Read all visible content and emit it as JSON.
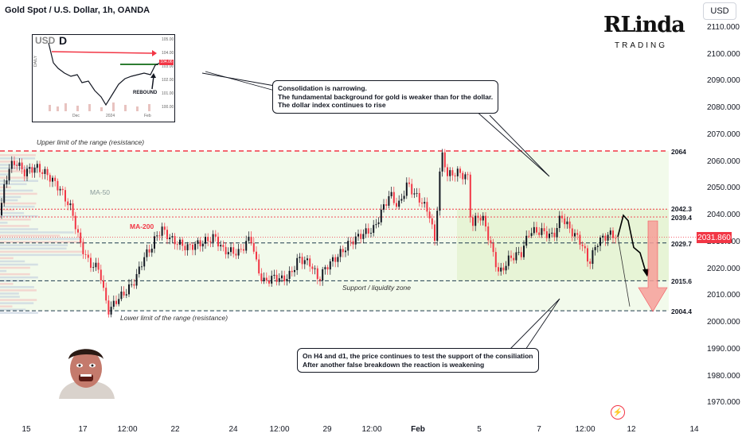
{
  "header": {
    "title": "Gold Spot / U.S. Dollar, 1h, OANDA",
    "currency": "USD"
  },
  "logo": {
    "line1": "RLinda",
    "line2": "TRADING"
  },
  "callouts": {
    "top": "Consolidation is narrowing.\nThe fundamental background for gold is weaker than for the dollar.\nThe dollar index continues to rise",
    "bottom": "On H4 and d1, the price continues to test the support of the consiliation\nAfter another false breakdown the reaction is weakening"
  },
  "annotations": {
    "upper": "Upper limit of the range (resistance)",
    "lower": "Lower limit of the range (resistance)",
    "support": "Support / liquidity zone",
    "ma50": "MA-50",
    "ma200": "MA-200"
  },
  "levels": [
    {
      "label": "2064",
      "value": 2064,
      "style": "red-dash"
    },
    {
      "label": "2042.3",
      "value": 2042.3,
      "style": "red-dot"
    },
    {
      "label": "2039.4",
      "value": 2039.4,
      "style": "red-dot"
    },
    {
      "label": "2029.7",
      "value": 2029.7,
      "style": "dark-dash"
    },
    {
      "label": "2015.6",
      "value": 2015.6,
      "style": "dark-dash"
    },
    {
      "label": "2004.4",
      "value": 2004.4,
      "style": "dark-dash"
    }
  ],
  "current_price": {
    "label": "2031.860",
    "value": 2031.86
  },
  "colors": {
    "up": "#131722",
    "down": "#f23645",
    "range_fill": "#eaf6dd",
    "resistance": "#f23645",
    "arrow": "#f7a09a"
  },
  "inset": {
    "currency": "USD",
    "timeframe": "D",
    "rebound": "REBOUND",
    "yticks": [
      "105.00",
      "104.00",
      "103.00",
      "102.00",
      "101.00",
      "100.00"
    ],
    "price_tag": "104.06",
    "xticks": [
      "Dec",
      "2024",
      "Feb"
    ],
    "side_label": "DAILY"
  },
  "chart_data": {
    "type": "candlestick",
    "title": "Gold Spot / U.S. Dollar, 1h, OANDA",
    "ylim": [
      1965,
      2115
    ],
    "yticks": [
      "1970.000",
      "1980.000",
      "1990.000",
      "2000.000",
      "2010.000",
      "2020.000",
      "2030.000",
      "2040.000",
      "2050.000",
      "2060.000",
      "2070.000",
      "2080.000",
      "2090.000",
      "2100.000",
      "2110.000"
    ],
    "xticks": [
      "15",
      "17",
      "12:00",
      "22",
      "24",
      "12:00",
      "29",
      "12:00",
      "Feb",
      "5",
      "7",
      "12:00",
      "12",
      "14"
    ],
    "price_path": [
      [
        0,
        2040
      ],
      [
        6,
        2052
      ],
      [
        12,
        2058
      ],
      [
        20,
        2060
      ],
      [
        30,
        2056
      ],
      [
        45,
        2058
      ],
      [
        60,
        2055
      ],
      [
        75,
        2050
      ],
      [
        90,
        2042
      ],
      [
        100,
        2030
      ],
      [
        112,
        2022
      ],
      [
        125,
        2020
      ],
      [
        131,
        2010
      ],
      [
        137,
        2004
      ],
      [
        145,
        2008
      ],
      [
        160,
        2012
      ],
      [
        170,
        2016
      ],
      [
        180,
        2024
      ],
      [
        190,
        2028
      ],
      [
        196,
        2032
      ],
      [
        203,
        2035
      ],
      [
        215,
        2031
      ],
      [
        235,
        2028
      ],
      [
        255,
        2030
      ],
      [
        270,
        2032
      ],
      [
        280,
        2027
      ],
      [
        300,
        2026
      ],
      [
        315,
        2032
      ],
      [
        322,
        2022
      ],
      [
        330,
        2015
      ],
      [
        345,
        2017
      ],
      [
        355,
        2016
      ],
      [
        365,
        2018
      ],
      [
        375,
        2024
      ],
      [
        390,
        2022
      ],
      [
        400,
        2016
      ],
      [
        410,
        2021
      ],
      [
        425,
        2025
      ],
      [
        440,
        2030
      ],
      [
        455,
        2033
      ],
      [
        470,
        2035
      ],
      [
        480,
        2042
      ],
      [
        490,
        2048
      ],
      [
        500,
        2043
      ],
      [
        512,
        2052
      ],
      [
        520,
        2048
      ],
      [
        530,
        2045
      ],
      [
        540,
        2040
      ],
      [
        546,
        2030
      ],
      [
        552,
        2055
      ],
      [
        556,
        2063
      ],
      [
        562,
        2055
      ],
      [
        575,
        2056
      ],
      [
        588,
        2054
      ],
      [
        592,
        2035
      ],
      [
        600,
        2040
      ],
      [
        608,
        2038
      ],
      [
        617,
        2028
      ],
      [
        627,
        2018
      ],
      [
        640,
        2024
      ],
      [
        655,
        2026
      ],
      [
        665,
        2034
      ],
      [
        680,
        2034
      ],
      [
        695,
        2032
      ],
      [
        705,
        2040
      ],
      [
        715,
        2035
      ],
      [
        730,
        2030
      ],
      [
        740,
        2022
      ],
      [
        750,
        2030
      ],
      [
        765,
        2033
      ],
      [
        776,
        2032
      ]
    ],
    "projection": [
      [
        776,
        2032
      ],
      [
        783,
        2040
      ],
      [
        789,
        2038
      ],
      [
        796,
        2028
      ],
      [
        804,
        2026
      ],
      [
        812,
        2018
      ]
    ],
    "projection_alt": [
      [
        776,
        2032
      ],
      [
        791,
        2006
      ]
    ]
  }
}
